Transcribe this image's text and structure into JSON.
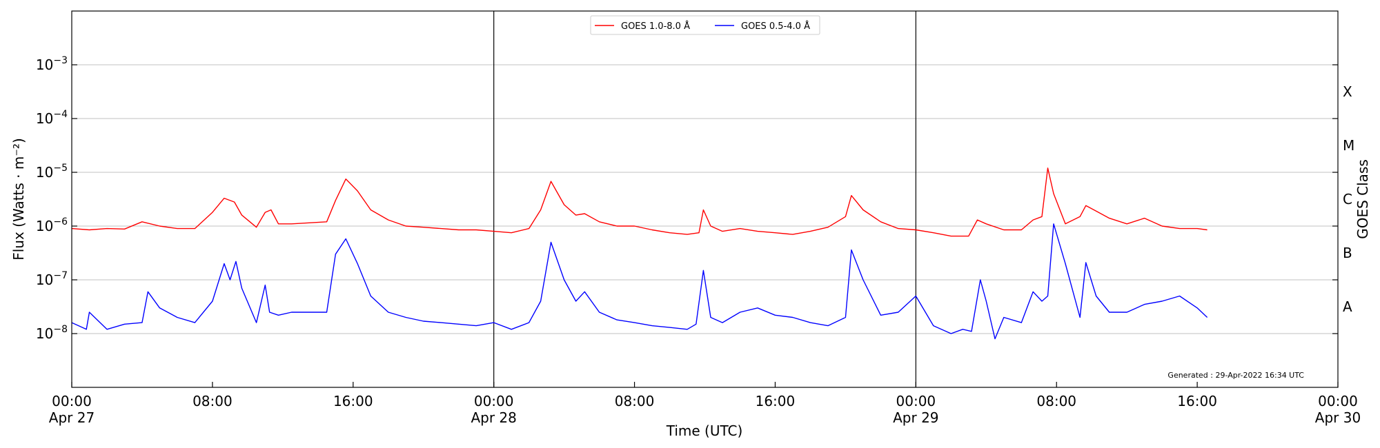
{
  "chart_data": {
    "type": "line",
    "xlabel": "Time (UTC)",
    "ylabel": "Flux (Watts · m⁻²)",
    "ylabel_right": "GOES Class",
    "y_scale": "log",
    "ylim": [
      1e-09,
      0.01
    ],
    "xlim": [
      "2022-04-27 00:00",
      "2022-04-30 00:00"
    ],
    "grid": "horizontal",
    "legend_position": "top-center",
    "annotation": "Generated : 29-Apr-2022 16:34 UTC",
    "y_ticks": [
      {
        "value": 1e-08,
        "base": "10",
        "exp": "−8"
      },
      {
        "value": 1e-07,
        "base": "10",
        "exp": "−7"
      },
      {
        "value": 1e-06,
        "base": "10",
        "exp": "−6"
      },
      {
        "value": 1e-05,
        "base": "10",
        "exp": "−5"
      },
      {
        "value": 0.0001,
        "base": "10",
        "exp": "−4"
      },
      {
        "value": 0.001,
        "base": "10",
        "exp": "−3"
      }
    ],
    "x_ticks": [
      {
        "time": "2022-04-27 00:00",
        "label": "00:00",
        "sub": "Apr 27"
      },
      {
        "time": "2022-04-27 08:00",
        "label": "08:00",
        "sub": ""
      },
      {
        "time": "2022-04-27 16:00",
        "label": "16:00",
        "sub": ""
      },
      {
        "time": "2022-04-28 00:00",
        "label": "00:00",
        "sub": "Apr 28"
      },
      {
        "time": "2022-04-28 08:00",
        "label": "08:00",
        "sub": ""
      },
      {
        "time": "2022-04-28 16:00",
        "label": "16:00",
        "sub": ""
      },
      {
        "time": "2022-04-29 00:00",
        "label": "00:00",
        "sub": "Apr 29"
      },
      {
        "time": "2022-04-29 08:00",
        "label": "08:00",
        "sub": ""
      },
      {
        "time": "2022-04-29 16:00",
        "label": "16:00",
        "sub": ""
      },
      {
        "time": "2022-04-30 00:00",
        "label": "00:00",
        "sub": "Apr 30"
      }
    ],
    "day_lines": [
      "2022-04-28 00:00",
      "2022-04-29 00:00"
    ],
    "goes_classes": [
      {
        "label": "A",
        "value": 1e-08
      },
      {
        "label": "B",
        "value": 1e-07
      },
      {
        "label": "C",
        "value": 1e-06
      },
      {
        "label": "M",
        "value": 1e-05
      },
      {
        "label": "X",
        "value": 0.0001
      }
    ],
    "series": [
      {
        "name": "GOES 1.0-8.0 Å",
        "color": "#ff0000",
        "x": [
          "2022-04-27 00:00",
          "2022-04-27 01:00",
          "2022-04-27 02:00",
          "2022-04-27 03:00",
          "2022-04-27 04:00",
          "2022-04-27 05:00",
          "2022-04-27 06:00",
          "2022-04-27 07:00",
          "2022-04-27 08:00",
          "2022-04-27 08:40",
          "2022-04-27 09:15",
          "2022-04-27 09:40",
          "2022-04-27 10:30",
          "2022-04-27 11:00",
          "2022-04-27 11:20",
          "2022-04-27 11:45",
          "2022-04-27 12:30",
          "2022-04-27 13:30",
          "2022-04-27 14:30",
          "2022-04-27 15:00",
          "2022-04-27 15:35",
          "2022-04-27 16:15",
          "2022-04-27 17:00",
          "2022-04-27 18:00",
          "2022-04-27 19:00",
          "2022-04-27 20:00",
          "2022-04-27 21:00",
          "2022-04-27 22:00",
          "2022-04-27 23:00",
          "2022-04-28 00:00",
          "2022-04-28 01:00",
          "2022-04-28 02:00",
          "2022-04-28 02:40",
          "2022-04-28 03:15",
          "2022-04-28 04:00",
          "2022-04-28 04:40",
          "2022-04-28 05:10",
          "2022-04-28 06:00",
          "2022-04-28 07:00",
          "2022-04-28 08:00",
          "2022-04-28 09:00",
          "2022-04-28 10:00",
          "2022-04-28 11:00",
          "2022-04-28 11:40",
          "2022-04-28 11:55",
          "2022-04-28 12:20",
          "2022-04-28 13:00",
          "2022-04-28 14:00",
          "2022-04-28 15:00",
          "2022-04-28 16:00",
          "2022-04-28 17:00",
          "2022-04-28 18:00",
          "2022-04-28 19:00",
          "2022-04-28 20:00",
          "2022-04-28 20:20",
          "2022-04-28 21:00",
          "2022-04-28 22:00",
          "2022-04-28 23:00",
          "2022-04-29 00:00",
          "2022-04-29 01:00",
          "2022-04-29 02:00",
          "2022-04-29 03:00",
          "2022-04-29 03:30",
          "2022-04-29 04:00",
          "2022-04-29 05:00",
          "2022-04-29 06:00",
          "2022-04-29 06:40",
          "2022-04-29 07:10",
          "2022-04-29 07:30",
          "2022-04-29 07:50",
          "2022-04-29 08:30",
          "2022-04-29 09:20",
          "2022-04-29 09:40",
          "2022-04-29 10:15",
          "2022-04-29 11:00",
          "2022-04-29 12:00",
          "2022-04-29 13:00",
          "2022-04-29 14:00",
          "2022-04-29 15:00",
          "2022-04-29 16:00",
          "2022-04-29 16:34"
        ],
        "values": [
          9e-07,
          8.5e-07,
          9e-07,
          8.8e-07,
          1.2e-06,
          1e-06,
          9e-07,
          9e-07,
          1.8e-06,
          3.3e-06,
          2.8e-06,
          1.6e-06,
          9.5e-07,
          1.8e-06,
          2e-06,
          1.1e-06,
          1.1e-06,
          1.15e-06,
          1.2e-06,
          3e-06,
          7.5e-06,
          4.5e-06,
          2e-06,
          1.3e-06,
          1e-06,
          9.5e-07,
          9e-07,
          8.5e-07,
          8.5e-07,
          8e-07,
          7.5e-07,
          9e-07,
          2e-06,
          6.8e-06,
          2.5e-06,
          1.6e-06,
          1.7e-06,
          1.2e-06,
          1e-06,
          1e-06,
          8.5e-07,
          7.5e-07,
          7e-07,
          7.5e-07,
          2e-06,
          1e-06,
          8e-07,
          9e-07,
          8e-07,
          7.5e-07,
          7e-07,
          8e-07,
          9.5e-07,
          1.5e-06,
          3.7e-06,
          2e-06,
          1.2e-06,
          9e-07,
          8.5e-07,
          7.5e-07,
          6.5e-07,
          6.5e-07,
          1.3e-06,
          1.1e-06,
          8.5e-07,
          8.5e-07,
          1.3e-06,
          1.5e-06,
          1.2e-05,
          4e-06,
          1.1e-06,
          1.5e-06,
          2.4e-06,
          1.9e-06,
          1.4e-06,
          1.1e-06,
          1.4e-06,
          1e-06,
          9e-07,
          9e-07,
          8.5e-07
        ]
      },
      {
        "name": "GOES 0.5-4.0 Å",
        "color": "#0000ff",
        "x": [
          "2022-04-27 00:00",
          "2022-04-27 00:50",
          "2022-04-27 01:00",
          "2022-04-27 02:00",
          "2022-04-27 03:00",
          "2022-04-27 04:00",
          "2022-04-27 04:20",
          "2022-04-27 05:00",
          "2022-04-27 06:00",
          "2022-04-27 07:00",
          "2022-04-27 08:00",
          "2022-04-27 08:40",
          "2022-04-27 09:00",
          "2022-04-27 09:20",
          "2022-04-27 09:40",
          "2022-04-27 10:30",
          "2022-04-27 11:00",
          "2022-04-27 11:15",
          "2022-04-27 11:45",
          "2022-04-27 12:30",
          "2022-04-27 13:30",
          "2022-04-27 14:30",
          "2022-04-27 15:00",
          "2022-04-27 15:35",
          "2022-04-27 16:15",
          "2022-04-27 17:00",
          "2022-04-27 18:00",
          "2022-04-27 19:00",
          "2022-04-27 20:00",
          "2022-04-27 21:00",
          "2022-04-27 22:00",
          "2022-04-27 23:00",
          "2022-04-28 00:00",
          "2022-04-28 01:00",
          "2022-04-28 02:00",
          "2022-04-28 02:40",
          "2022-04-28 03:15",
          "2022-04-28 04:00",
          "2022-04-28 04:40",
          "2022-04-28 05:10",
          "2022-04-28 06:00",
          "2022-04-28 07:00",
          "2022-04-28 08:00",
          "2022-04-28 09:00",
          "2022-04-28 10:00",
          "2022-04-28 11:00",
          "2022-04-28 11:30",
          "2022-04-28 11:55",
          "2022-04-28 12:20",
          "2022-04-28 13:00",
          "2022-04-28 14:00",
          "2022-04-28 15:00",
          "2022-04-28 16:00",
          "2022-04-28 17:00",
          "2022-04-28 18:00",
          "2022-04-28 19:00",
          "2022-04-28 20:00",
          "2022-04-28 20:20",
          "2022-04-28 21:00",
          "2022-04-28 22:00",
          "2022-04-28 23:00",
          "2022-04-29 00:00",
          "2022-04-29 01:00",
          "2022-04-29 02:00",
          "2022-04-29 02:40",
          "2022-04-29 03:10",
          "2022-04-29 03:40",
          "2022-04-29 04:00",
          "2022-04-29 04:30",
          "2022-04-29 05:00",
          "2022-04-29 06:00",
          "2022-04-29 06:40",
          "2022-04-29 07:10",
          "2022-04-29 07:30",
          "2022-04-29 07:50",
          "2022-04-29 08:30",
          "2022-04-29 09:20",
          "2022-04-29 09:40",
          "2022-04-29 10:15",
          "2022-04-29 11:00",
          "2022-04-29 12:00",
          "2022-04-29 13:00",
          "2022-04-29 14:00",
          "2022-04-29 15:00",
          "2022-04-29 16:00",
          "2022-04-29 16:34"
        ],
        "values": [
          1.6e-08,
          1.2e-08,
          2.5e-08,
          1.2e-08,
          1.5e-08,
          1.6e-08,
          6e-08,
          3e-08,
          2e-08,
          1.6e-08,
          4e-08,
          2e-07,
          1e-07,
          2.2e-07,
          7e-08,
          1.6e-08,
          8e-08,
          2.5e-08,
          2.2e-08,
          2.5e-08,
          2.5e-08,
          2.5e-08,
          3e-07,
          5.8e-07,
          2e-07,
          5e-08,
          2.5e-08,
          2e-08,
          1.7e-08,
          1.6e-08,
          1.5e-08,
          1.4e-08,
          1.6e-08,
          1.2e-08,
          1.6e-08,
          4e-08,
          5e-07,
          1e-07,
          4e-08,
          6e-08,
          2.5e-08,
          1.8e-08,
          1.6e-08,
          1.4e-08,
          1.3e-08,
          1.2e-08,
          1.5e-08,
          1.5e-07,
          2e-08,
          1.6e-08,
          2.5e-08,
          3e-08,
          2.2e-08,
          2e-08,
          1.6e-08,
          1.4e-08,
          2e-08,
          3.6e-07,
          1e-07,
          2.2e-08,
          2.5e-08,
          5e-08,
          1.4e-08,
          1e-08,
          1.2e-08,
          1.1e-08,
          1e-07,
          4e-08,
          8e-09,
          2e-08,
          1.6e-08,
          6e-08,
          4e-08,
          5e-08,
          1.1e-06,
          2e-07,
          2e-08,
          2.1e-07,
          5e-08,
          2.5e-08,
          2.5e-08,
          3.5e-08,
          4e-08,
          5e-08,
          3e-08,
          2e-08
        ]
      }
    ]
  }
}
